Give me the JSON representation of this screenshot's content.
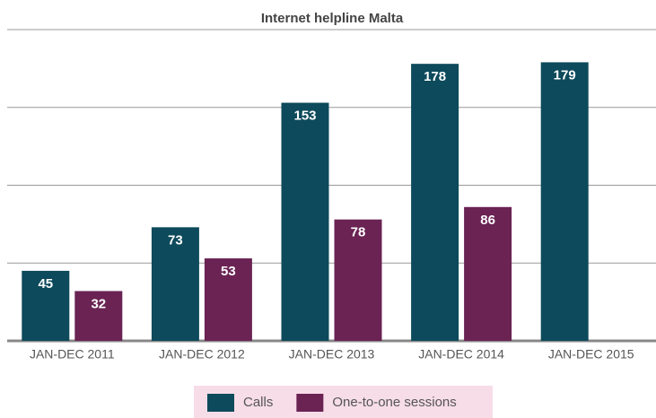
{
  "chart_data": {
    "type": "bar",
    "title": "Internet helpline Malta",
    "categories": [
      "JAN-DEC 2011",
      "JAN-DEC 2012",
      "JAN-DEC 2013",
      "JAN-DEC 2014",
      "JAN-DEC 2015"
    ],
    "series": [
      {
        "name": "Calls",
        "color": "#0d4a5b",
        "values": [
          45,
          73,
          153,
          178,
          179
        ]
      },
      {
        "name": "One-to-one sessions",
        "color": "#6a2353",
        "values": [
          32,
          53,
          78,
          86,
          null
        ]
      }
    ],
    "ylim": [
      0,
      200
    ],
    "yticks": [
      0,
      50,
      100,
      150,
      200
    ],
    "grid": true,
    "legend": "bottom"
  }
}
